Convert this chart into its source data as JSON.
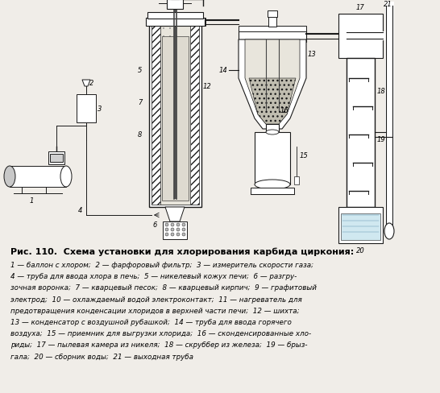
{
  "title": "Рис. 110.  Схема установки для хлорирования карбида циркония:",
  "caption_lines": [
    "1 — баллон с хлором;  2 — фарфоровый фильтр;  3 — измеритель скорости газа;",
    "4 — труба для ввода хлора в печь;  5 — никелевый кожух печи;  6 — разгру-",
    "зочная воронка;  7 — кварцевый песок;  8 — кварцевый кирпич;  9 — графитовый",
    "электрод;  10 — охлаждаемый водой электроконтакт;  11 — нагреватель для",
    "предотвращения конденсации хлоридов в верхней части печи;  12 — шихта;",
    "13 — конденсатор с воздушной рубашкой;  14 — труба для ввода горячего",
    "воздуха;  15 — приемник для выгрузки хлорида;  16 — сконденсированные хло-",
    "риды;  17 — пылевая камера из никеля;  18 — скруббер из железа;  19 — брыз-",
    "гала;  20 — сборник воды;  21 — выходная труба"
  ],
  "bg_color": "#f0ede8",
  "lc": "#1a1a1a"
}
